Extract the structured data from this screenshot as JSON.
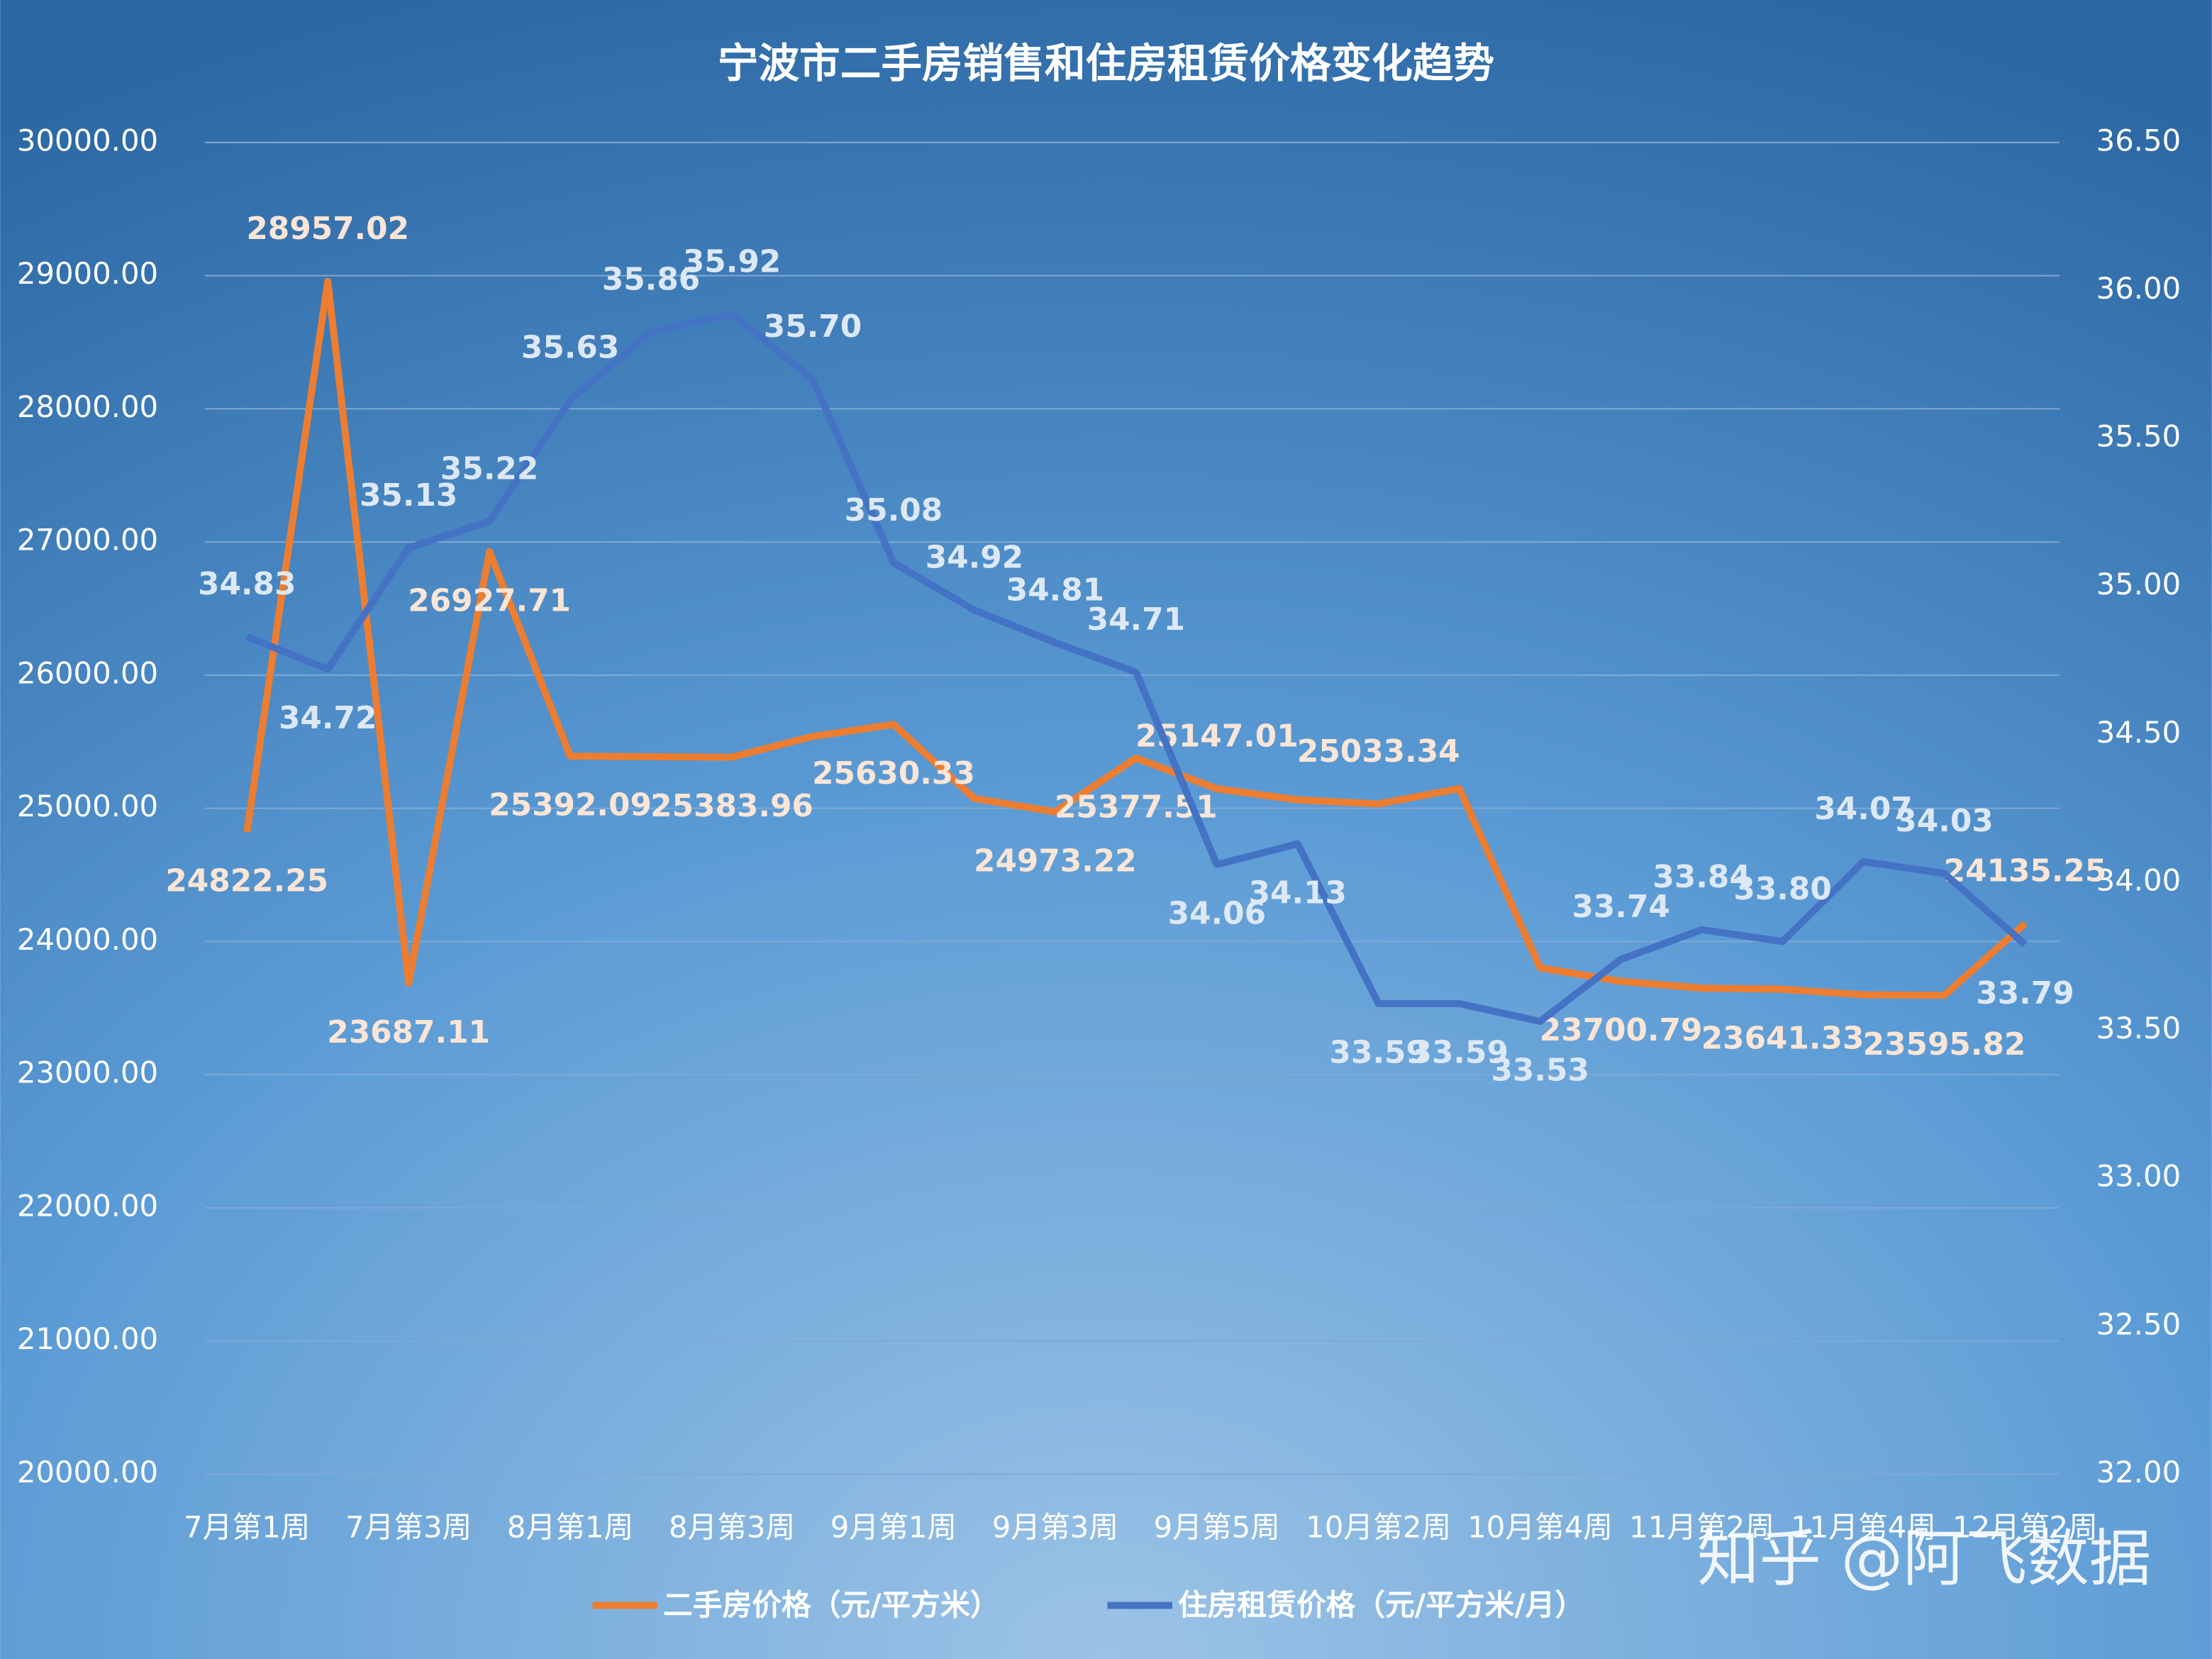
{
  "chart_data": {
    "type": "line",
    "title": "宁波市二手房销售和住房租赁价格变化趋势",
    "categories": [
      "7月第1周",
      null,
      "7月第3周",
      null,
      "8月第1周",
      null,
      "8月第3周",
      null,
      "9月第1周",
      null,
      "9月第3周",
      null,
      "9月第5周",
      null,
      "10月第2周",
      null,
      "10月第4周",
      null,
      "11月第2周",
      null,
      "11月第4周",
      null,
      "12月第2周"
    ],
    "series": [
      {
        "name": "二手房价格（元/平方米）",
        "color": "#ed7d31",
        "values": [
          24822.25,
          28957.02,
          23687.11,
          26927.71,
          25392.09,
          25388,
          25383.96,
          25540,
          25630.33,
          25074,
          24973.22,
          25377.51,
          25147.01,
          25064,
          25033.34,
          25148,
          23803,
          23700.79,
          23650,
          23641.33,
          23600,
          23595.82,
          24135.25
        ],
        "value_labels": [
          "24822.25",
          "28957.02",
          "23687.11",
          "26927.71",
          "25392.09",
          null,
          "25383.96",
          null,
          "25630.33",
          null,
          "24973.22",
          "25377.51",
          "25147.01",
          null,
          "25033.34",
          null,
          null,
          "23700.79",
          null,
          "23641.33",
          null,
          "23595.82",
          "24135.25"
        ]
      },
      {
        "name": "住房租赁价格（元/平方米/月）",
        "color": "#4472c4",
        "axis": "y2",
        "values": [
          34.83,
          34.72,
          35.13,
          35.22,
          35.63,
          35.86,
          35.92,
          35.7,
          35.08,
          34.92,
          34.81,
          34.71,
          34.06,
          34.13,
          33.59,
          33.59,
          33.53,
          33.74,
          33.84,
          33.8,
          34.07,
          34.03,
          33.79
        ],
        "value_labels": [
          "34.83",
          "34.72",
          "35.13",
          "35.22",
          "35.63",
          "35.86",
          "35.92",
          "35.70",
          "35.08",
          "34.92",
          "34.81",
          "34.71",
          "34.06",
          "34.13",
          "33.59",
          "33.59",
          "33.53",
          "33.74",
          "33.84",
          "33.80",
          "34.07",
          "34.03",
          "33.79"
        ]
      }
    ],
    "ylim": [
      20000,
      30000
    ],
    "yticks": [
      {
        "value": 20000,
        "label": "20000.00"
      },
      {
        "value": 21000,
        "label": "21000.00"
      },
      {
        "value": 22000,
        "label": "22000.00"
      },
      {
        "value": 23000,
        "label": "23000.00"
      },
      {
        "value": 24000,
        "label": "24000.00"
      },
      {
        "value": 25000,
        "label": "25000.00"
      },
      {
        "value": 26000,
        "label": "26000.00"
      },
      {
        "value": 27000,
        "label": "27000.00"
      },
      {
        "value": 28000,
        "label": "28000.00"
      },
      {
        "value": 29000,
        "label": "29000.00"
      },
      {
        "value": 30000,
        "label": "30000.00"
      }
    ],
    "y2lim": [
      32,
      36.5
    ],
    "y2ticks": [
      {
        "value": 32,
        "label": "32.00"
      },
      {
        "value": 32.5,
        "label": "32.50"
      },
      {
        "value": 33,
        "label": "33.00"
      },
      {
        "value": 33.5,
        "label": "33.50"
      },
      {
        "value": 34,
        "label": "34.00"
      },
      {
        "value": 34.5,
        "label": "34.50"
      },
      {
        "value": 35,
        "label": "35.00"
      },
      {
        "value": 35.5,
        "label": "35.50"
      },
      {
        "value": 36,
        "label": "36.00"
      },
      {
        "value": 36.5,
        "label": "36.50"
      }
    ],
    "grid": true,
    "legend": "bottom",
    "watermark": "知乎 @阿飞数据"
  }
}
